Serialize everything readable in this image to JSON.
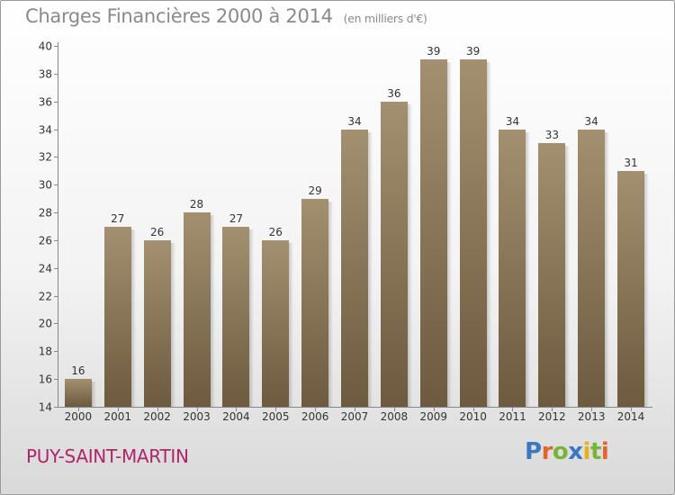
{
  "title": "Charges Financières 2000 à 2014",
  "subtitle": "(en milliers d'€)",
  "commune": "PUY-SAINT-MARTIN",
  "logo": {
    "text": "Proxiti",
    "colors": [
      "#3a78c3",
      "#e1652c",
      "#79b43a",
      "#3a78c3",
      "#e3b21b",
      "#79b43a",
      "#e1652c"
    ]
  },
  "colors": {
    "bar_top": "#a39070",
    "bar_bottom": "#6d5a3f",
    "title": "#8a8a8a",
    "commune": "#b0246a"
  },
  "chart_data": {
    "type": "bar",
    "categories": [
      "2000",
      "2001",
      "2002",
      "2003",
      "2004",
      "2005",
      "2006",
      "2007",
      "2008",
      "2009",
      "2010",
      "2011",
      "2012",
      "2013",
      "2014"
    ],
    "values": [
      16,
      27,
      26,
      28,
      27,
      26,
      29,
      34,
      36,
      39,
      39,
      34,
      33,
      34,
      31
    ],
    "title": "Charges Financières 2000 à 2014",
    "subtitle": "(en milliers d'€)",
    "ylim": [
      14,
      40
    ],
    "yticks": [
      14,
      16,
      18,
      20,
      22,
      24,
      26,
      28,
      30,
      32,
      34,
      36,
      38,
      40
    ],
    "grid": false,
    "data_labels": true
  }
}
